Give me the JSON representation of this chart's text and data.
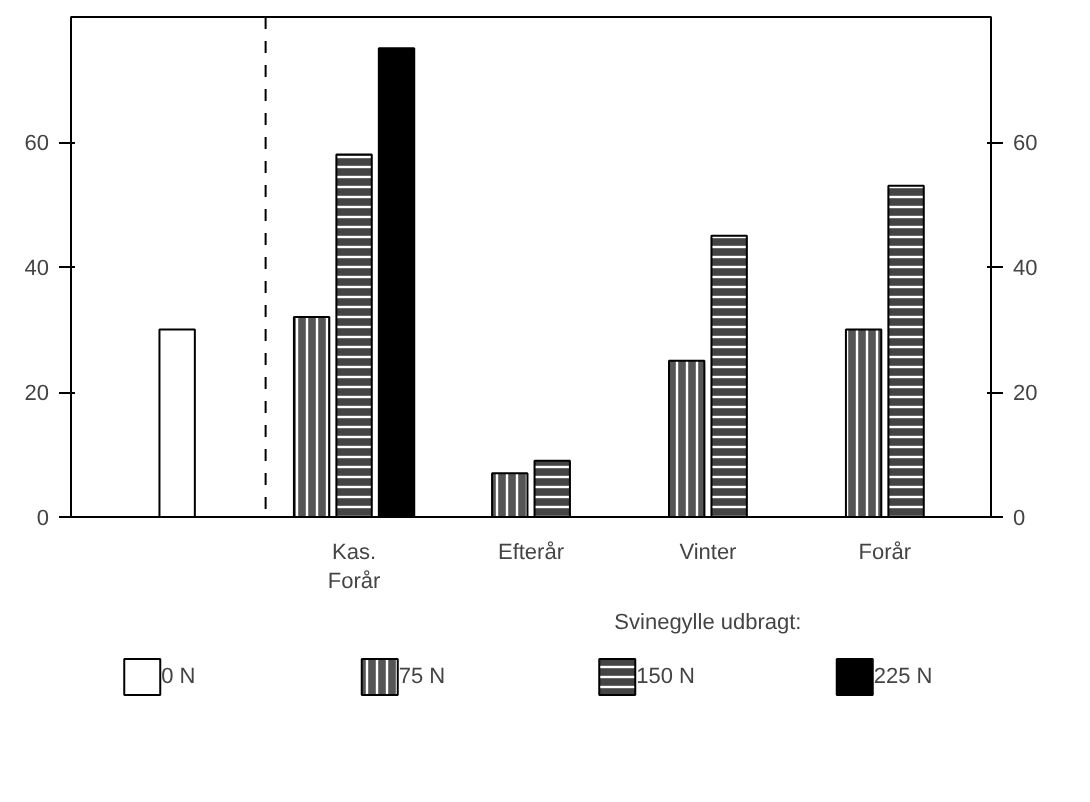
{
  "chart_data": {
    "type": "bar",
    "categories": [
      null,
      "Kas.\nForår",
      "Efterår",
      "Vinter",
      "Forår"
    ],
    "series": [
      {
        "name": "0 N",
        "color": "#ffffff",
        "values": [
          30,
          null,
          null,
          null,
          null
        ]
      },
      {
        "name": "75 N",
        "color": "#555555",
        "values": [
          null,
          32,
          7,
          25,
          30
        ]
      },
      {
        "name": "150 N",
        "color": "#444444",
        "values": [
          null,
          58,
          9,
          45,
          53
        ]
      },
      {
        "name": "225 N",
        "color": "#000000",
        "values": [
          null,
          75,
          null,
          null,
          null
        ]
      }
    ],
    "annotations": [
      "Svinegylle udbragt:"
    ],
    "ylim": [
      0,
      80
    ],
    "yticks": [
      0,
      20,
      40,
      60
    ],
    "y2lim": [
      0,
      80
    ],
    "y2ticks": [
      0,
      20,
      40,
      60
    ],
    "grid": false,
    "legend": "bottom"
  }
}
